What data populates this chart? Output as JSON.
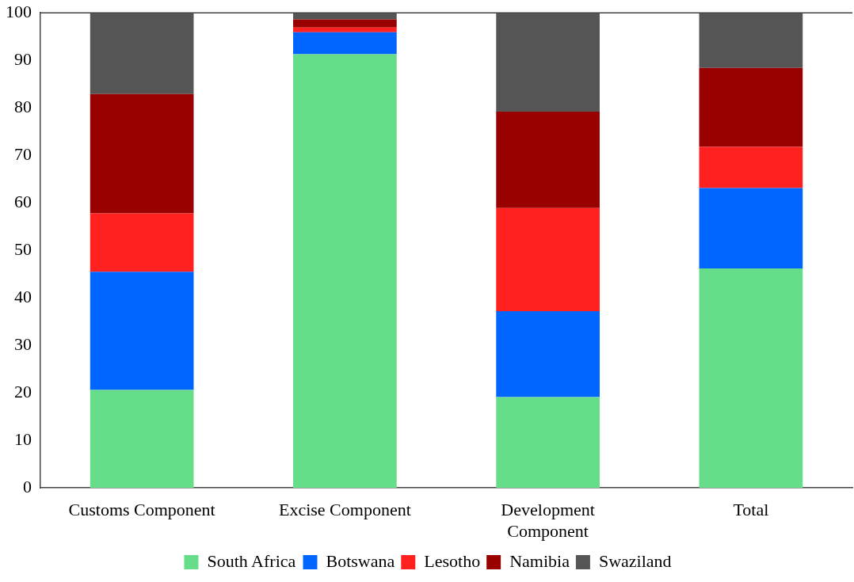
{
  "chart_data": {
    "type": "bar",
    "stacked": true,
    "categories": [
      "Customs Component",
      "Excise Component",
      "Development Component",
      "Total"
    ],
    "series": [
      {
        "name": "South Africa",
        "color": "#66dd88",
        "values": [
          20.6,
          91.3,
          19.1,
          46.2
        ]
      },
      {
        "name": "Botswana",
        "color": "#0066ff",
        "values": [
          24.9,
          4.6,
          18.1,
          16.9
        ]
      },
      {
        "name": "Lesotho",
        "color": "#ff2020",
        "values": [
          12.3,
          1.0,
          21.7,
          8.7
        ]
      },
      {
        "name": "Namibia",
        "color": "#990000",
        "values": [
          25.1,
          1.7,
          20.3,
          16.6
        ]
      },
      {
        "name": "Swaziland",
        "color": "#555555",
        "values": [
          17.1,
          1.4,
          20.8,
          11.6
        ]
      }
    ],
    "ylim": [
      0,
      100
    ],
    "yticks": [
      0,
      10,
      20,
      30,
      40,
      50,
      60,
      70,
      80,
      90,
      100
    ],
    "grid": false,
    "legend": "bottom"
  }
}
